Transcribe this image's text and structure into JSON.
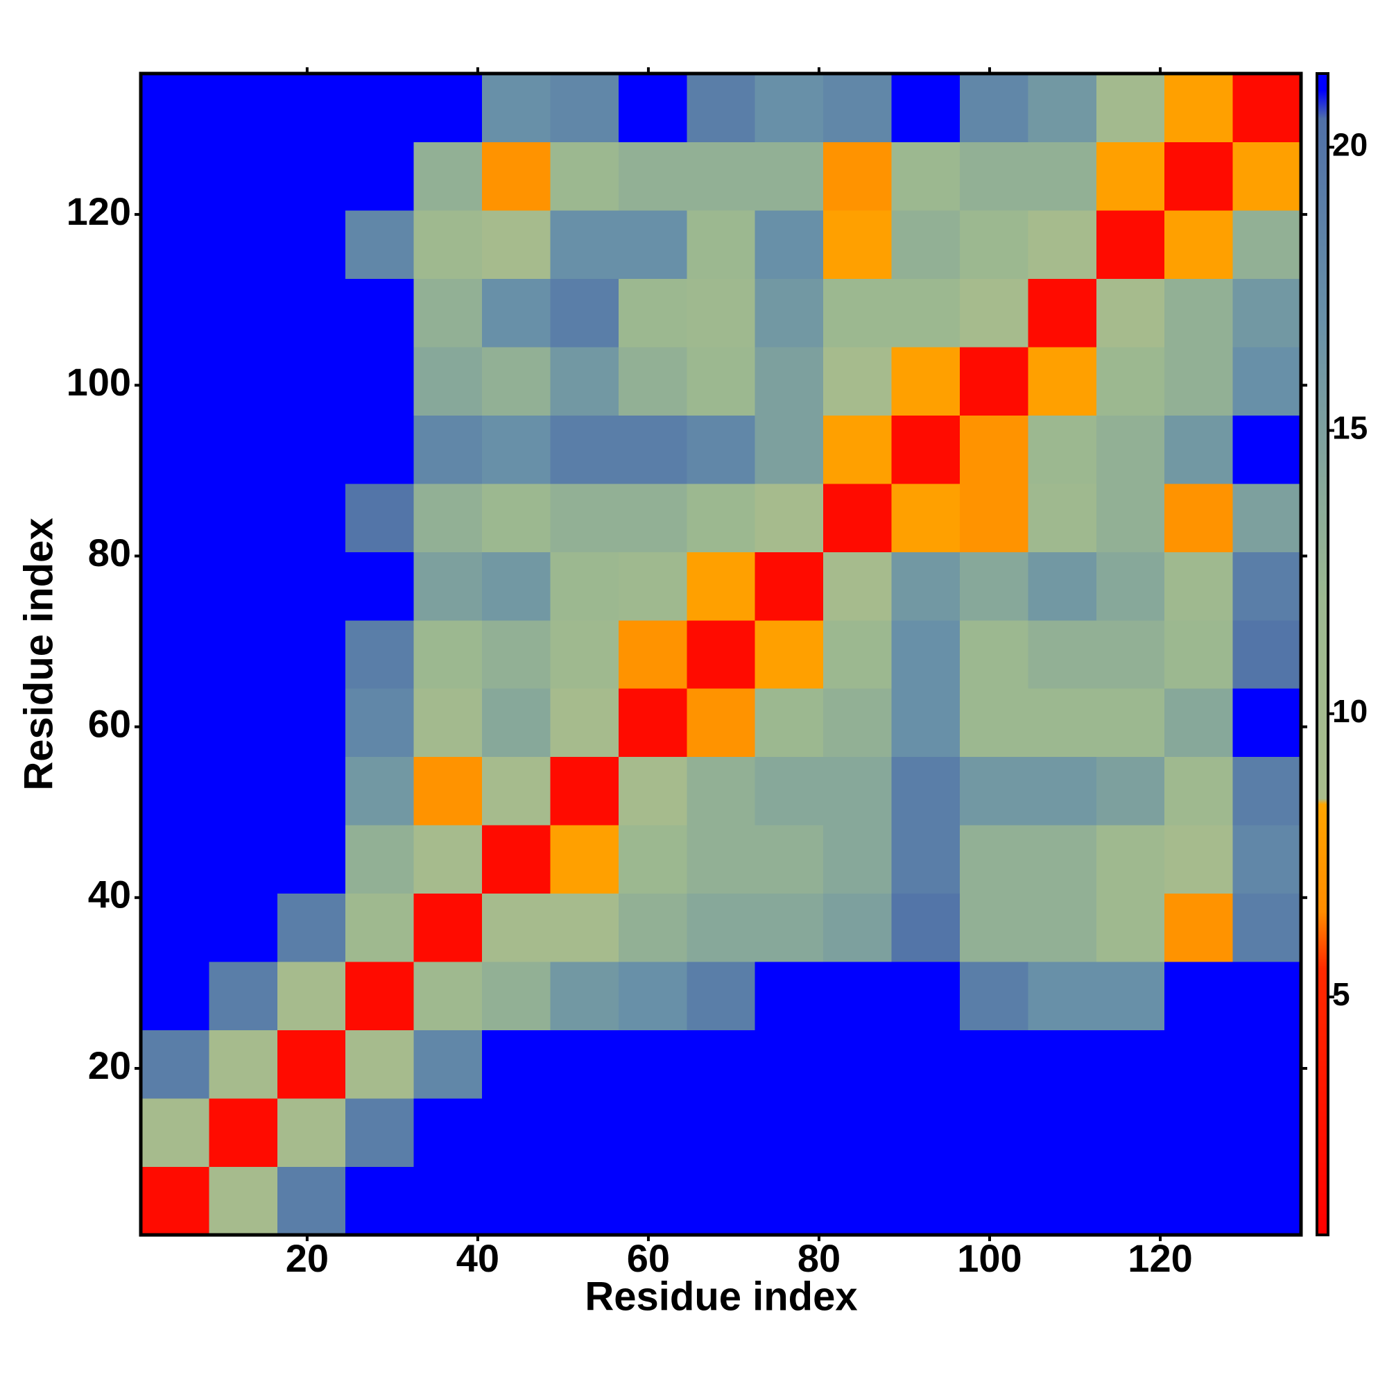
{
  "chart_data": {
    "type": "heatmap",
    "x_label": "Residue index",
    "y_label": "Residue index",
    "xlim": [
      0.5,
      136.5
    ],
    "ylim": [
      0.5,
      136.5
    ],
    "xticks": [
      20,
      40,
      60,
      80,
      100,
      120
    ],
    "yticks": [
      20,
      40,
      60,
      80,
      100,
      120
    ],
    "x_bins": [
      0.5,
      8.5,
      16.5,
      24.5,
      32.5,
      40.5,
      48.5,
      56.5,
      64.5,
      72.5,
      80.5,
      88.5,
      96.5,
      104.5,
      112.5,
      120.5,
      128.5,
      136.5
    ],
    "y_bins": [
      0.5,
      8.5,
      16.5,
      24.5,
      32.5,
      40.5,
      48.5,
      56.5,
      64.5,
      72.5,
      80.5,
      88.5,
      96.5,
      104.5,
      112.5,
      120.5,
      128.5,
      136.5
    ],
    "values": [
      [
        2,
        9,
        19,
        21,
        21,
        21,
        21,
        21,
        21,
        21,
        21,
        21,
        21,
        21,
        21,
        21,
        21
      ],
      [
        9,
        2,
        9,
        19,
        21,
        21,
        21,
        21,
        21,
        21,
        21,
        21,
        21,
        21,
        21,
        21,
        21
      ],
      [
        19,
        9,
        2,
        9,
        18,
        21,
        21,
        21,
        21,
        21,
        21,
        21,
        21,
        21,
        21,
        21,
        21
      ],
      [
        21,
        19,
        9,
        2,
        11,
        13,
        16,
        17,
        19,
        21,
        21,
        21,
        19,
        17,
        17,
        21,
        21
      ],
      [
        21,
        21,
        19,
        11,
        2,
        9,
        9,
        13,
        14,
        14,
        15,
        20,
        13,
        13,
        11,
        7,
        19
      ],
      [
        21,
        21,
        21,
        13,
        9,
        2,
        8,
        12,
        13,
        13,
        14,
        19,
        13,
        13,
        11,
        9,
        18
      ],
      [
        21,
        21,
        21,
        16,
        7,
        9,
        2,
        9,
        13,
        14,
        14,
        19,
        16,
        16,
        15,
        11,
        19
      ],
      [
        21,
        21,
        21,
        18,
        10,
        14,
        9,
        2,
        7,
        12,
        13,
        17,
        12,
        12,
        12,
        14,
        21
      ],
      [
        21,
        21,
        21,
        19,
        12,
        13,
        11,
        7,
        2,
        8,
        12,
        17,
        12,
        13,
        13,
        12,
        20
      ],
      [
        21,
        21,
        21,
        21,
        15,
        16,
        12,
        11,
        8,
        2,
        9,
        16,
        14,
        16,
        14,
        11,
        19
      ],
      [
        21,
        21,
        21,
        20,
        13,
        12,
        13,
        13,
        12,
        9,
        2,
        8,
        7,
        11,
        13,
        7,
        15
      ],
      [
        21,
        21,
        21,
        21,
        18,
        17,
        19,
        19,
        18,
        15,
        8,
        2,
        7,
        12,
        13,
        16,
        21
      ],
      [
        21,
        21,
        21,
        21,
        14,
        13,
        16,
        13,
        12,
        15,
        9,
        8,
        2,
        8,
        12,
        13,
        17
      ],
      [
        21,
        21,
        21,
        21,
        13,
        17,
        19,
        12,
        11,
        16,
        12,
        12,
        9,
        2,
        9,
        13,
        16
      ],
      [
        21,
        21,
        21,
        18,
        11,
        9,
        17,
        17,
        12,
        17,
        8,
        13,
        12,
        9,
        2,
        8,
        13
      ],
      [
        21,
        21,
        21,
        21,
        13,
        7,
        12,
        13,
        13,
        13,
        7,
        12,
        13,
        13,
        8,
        2,
        8
      ],
      [
        21,
        21,
        21,
        21,
        21,
        17,
        18,
        21,
        19,
        17,
        18,
        21,
        18,
        16,
        10,
        8,
        2
      ]
    ],
    "colorbar": {
      "lim": [
        0.8,
        21.3
      ],
      "ticks": [
        5,
        10,
        15,
        20
      ],
      "colorscale": [
        {
          "value": 0.8,
          "color": "#ff0000"
        },
        {
          "value": 5.5,
          "color": "#ff2a00"
        },
        {
          "value": 6.5,
          "color": "#ff8c00"
        },
        {
          "value": 8.4,
          "color": "#ffa500"
        },
        {
          "value": 8.5,
          "color": "#a8bc8c"
        },
        {
          "value": 12,
          "color": "#9cb890"
        },
        {
          "value": 17,
          "color": "#6890a8"
        },
        {
          "value": 20.5,
          "color": "#5070a8"
        },
        {
          "value": 21,
          "color": "#0000ff"
        }
      ]
    }
  }
}
